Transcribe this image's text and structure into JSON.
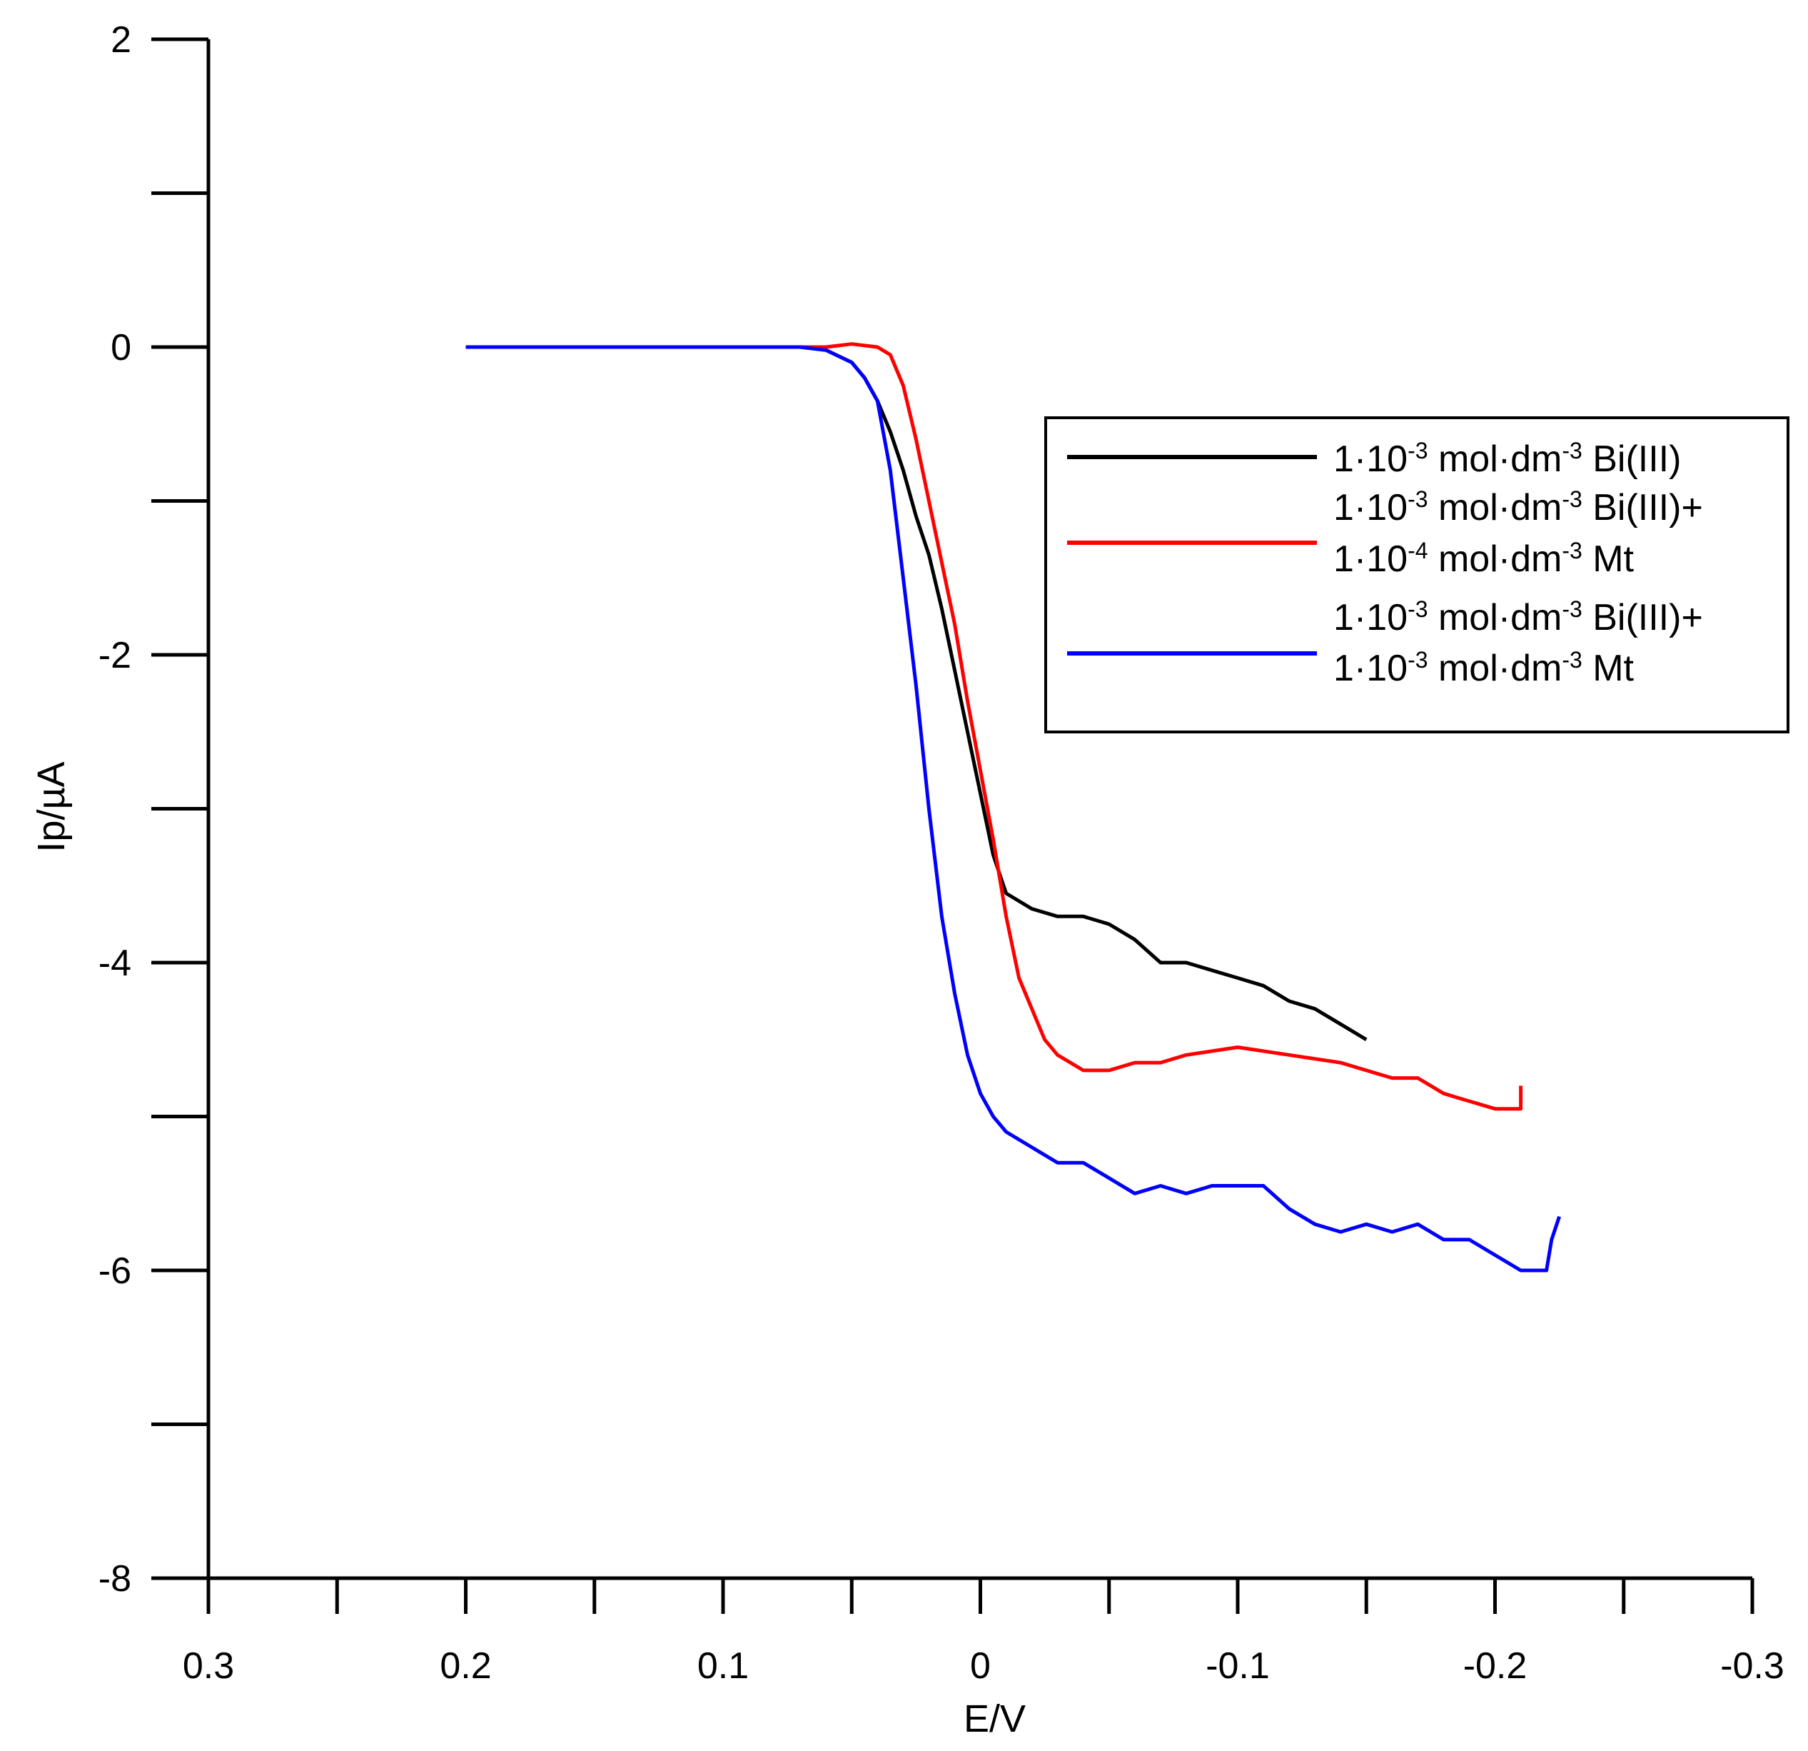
{
  "chart_data": {
    "type": "line",
    "title": "",
    "xlabel": "E/V",
    "ylabel": "Ip/µA",
    "xlim": [
      0.3,
      -0.3
    ],
    "ylim": [
      -8,
      2
    ],
    "x_ticks": [
      0.3,
      0.2,
      0.1,
      0,
      -0.1,
      -0.2,
      -0.3
    ],
    "x_tick_labels": [
      "0.3",
      "0.2",
      "0.1",
      "0",
      "-0.1",
      "-0.2",
      "-0.3"
    ],
    "y_ticks": [
      2,
      0,
      -2,
      -4,
      -6,
      -8
    ],
    "y_tick_labels": [
      "2",
      "0",
      "-2",
      "-4",
      "-6",
      "-8"
    ],
    "legend_position": "upper-right",
    "series": [
      {
        "name": "1·10-3 mol·dm-3 Bi(III)",
        "color": "#000000",
        "legend_lines": [
          [
            {
              "t": "1·10",
              "sup": false
            },
            {
              "t": "-3",
              "sup": true
            },
            {
              "t": " mol·dm",
              "sup": false
            },
            {
              "t": "-3",
              "sup": true
            },
            {
              "t": " Bi(III)",
              "sup": false
            }
          ]
        ],
        "points": [
          [
            0.2,
            0.0
          ],
          [
            0.15,
            0.0
          ],
          [
            0.1,
            0.0
          ],
          [
            0.07,
            0.0
          ],
          [
            0.06,
            -0.02
          ],
          [
            0.05,
            -0.1
          ],
          [
            0.045,
            -0.2
          ],
          [
            0.04,
            -0.35
          ],
          [
            0.035,
            -0.55
          ],
          [
            0.03,
            -0.8
          ],
          [
            0.025,
            -1.1
          ],
          [
            0.02,
            -1.35
          ],
          [
            0.015,
            -1.7
          ],
          [
            0.01,
            -2.1
          ],
          [
            0.005,
            -2.5
          ],
          [
            0.0,
            -2.9
          ],
          [
            -0.005,
            -3.3
          ],
          [
            -0.01,
            -3.55
          ],
          [
            -0.02,
            -3.65
          ],
          [
            -0.03,
            -3.7
          ],
          [
            -0.04,
            -3.7
          ],
          [
            -0.05,
            -3.75
          ],
          [
            -0.06,
            -3.85
          ],
          [
            -0.07,
            -4.0
          ],
          [
            -0.08,
            -4.0
          ],
          [
            -0.09,
            -4.05
          ],
          [
            -0.1,
            -4.1
          ],
          [
            -0.11,
            -4.15
          ],
          [
            -0.12,
            -4.25
          ],
          [
            -0.13,
            -4.3
          ],
          [
            -0.14,
            -4.4
          ],
          [
            -0.15,
            -4.5
          ]
        ]
      },
      {
        "name": "1·10-3 mol·dm-3 Bi(III)+ 1·10-4 mol·dm-3 Mt",
        "color": "#ff0000",
        "legend_lines": [
          [
            {
              "t": "1·10",
              "sup": false
            },
            {
              "t": "-3",
              "sup": true
            },
            {
              "t": " mol·dm",
              "sup": false
            },
            {
              "t": "-3",
              "sup": true
            },
            {
              "t": " Bi(III)+",
              "sup": false
            }
          ],
          [
            {
              "t": "1·10",
              "sup": false
            },
            {
              "t": "-4",
              "sup": true
            },
            {
              "t": " mol·dm",
              "sup": false
            },
            {
              "t": "-3",
              "sup": true
            },
            {
              "t": " Mt",
              "sup": false
            }
          ]
        ],
        "points": [
          [
            0.2,
            0.0
          ],
          [
            0.15,
            0.0
          ],
          [
            0.1,
            0.0
          ],
          [
            0.06,
            0.0
          ],
          [
            0.05,
            0.02
          ],
          [
            0.04,
            0.0
          ],
          [
            0.035,
            -0.05
          ],
          [
            0.03,
            -0.25
          ],
          [
            0.025,
            -0.6
          ],
          [
            0.02,
            -1.0
          ],
          [
            0.015,
            -1.4
          ],
          [
            0.01,
            -1.8
          ],
          [
            0.005,
            -2.3
          ],
          [
            0.0,
            -2.75
          ],
          [
            -0.005,
            -3.2
          ],
          [
            -0.01,
            -3.7
          ],
          [
            -0.015,
            -4.1
          ],
          [
            -0.02,
            -4.3
          ],
          [
            -0.025,
            -4.5
          ],
          [
            -0.03,
            -4.6
          ],
          [
            -0.04,
            -4.7
          ],
          [
            -0.05,
            -4.7
          ],
          [
            -0.06,
            -4.65
          ],
          [
            -0.07,
            -4.65
          ],
          [
            -0.08,
            -4.6
          ],
          [
            -0.1,
            -4.55
          ],
          [
            -0.12,
            -4.6
          ],
          [
            -0.14,
            -4.65
          ],
          [
            -0.16,
            -4.75
          ],
          [
            -0.17,
            -4.75
          ],
          [
            -0.18,
            -4.85
          ],
          [
            -0.19,
            -4.9
          ],
          [
            -0.2,
            -4.95
          ],
          [
            -0.21,
            -4.95
          ],
          [
            -0.21,
            -4.8
          ]
        ]
      },
      {
        "name": "1·10-3 mol·dm-3 Bi(III)+ 1·10-3 mol·dm-3 Mt",
        "color": "#0000ff",
        "legend_lines": [
          [
            {
              "t": "1·10",
              "sup": false
            },
            {
              "t": "-3",
              "sup": true
            },
            {
              "t": " mol·dm",
              "sup": false
            },
            {
              "t": "-3",
              "sup": true
            },
            {
              "t": " Bi(III)+",
              "sup": false
            }
          ],
          [
            {
              "t": "1·10",
              "sup": false
            },
            {
              "t": "-3",
              "sup": true
            },
            {
              "t": " mol·dm",
              "sup": false
            },
            {
              "t": "-3",
              "sup": true
            },
            {
              "t": " Mt",
              "sup": false
            }
          ]
        ],
        "points": [
          [
            0.2,
            0.0
          ],
          [
            0.15,
            0.0
          ],
          [
            0.1,
            0.0
          ],
          [
            0.07,
            0.0
          ],
          [
            0.06,
            -0.02
          ],
          [
            0.05,
            -0.1
          ],
          [
            0.045,
            -0.2
          ],
          [
            0.04,
            -0.35
          ],
          [
            0.035,
            -0.8
          ],
          [
            0.03,
            -1.5
          ],
          [
            0.025,
            -2.2
          ],
          [
            0.02,
            -3.0
          ],
          [
            0.015,
            -3.7
          ],
          [
            0.01,
            -4.2
          ],
          [
            0.005,
            -4.6
          ],
          [
            0.0,
            -4.85
          ],
          [
            -0.005,
            -5.0
          ],
          [
            -0.01,
            -5.1
          ],
          [
            -0.02,
            -5.2
          ],
          [
            -0.03,
            -5.3
          ],
          [
            -0.04,
            -5.3
          ],
          [
            -0.05,
            -5.4
          ],
          [
            -0.06,
            -5.5
          ],
          [
            -0.07,
            -5.45
          ],
          [
            -0.08,
            -5.5
          ],
          [
            -0.09,
            -5.45
          ],
          [
            -0.1,
            -5.45
          ],
          [
            -0.11,
            -5.45
          ],
          [
            -0.12,
            -5.6
          ],
          [
            -0.13,
            -5.7
          ],
          [
            -0.14,
            -5.75
          ],
          [
            -0.15,
            -5.7
          ],
          [
            -0.16,
            -5.75
          ],
          [
            -0.17,
            -5.7
          ],
          [
            -0.18,
            -5.8
          ],
          [
            -0.19,
            -5.8
          ],
          [
            -0.2,
            -5.9
          ],
          [
            -0.21,
            -6.0
          ],
          [
            -0.22,
            -6.0
          ],
          [
            -0.222,
            -5.8
          ],
          [
            -0.225,
            -5.65
          ]
        ]
      }
    ]
  }
}
